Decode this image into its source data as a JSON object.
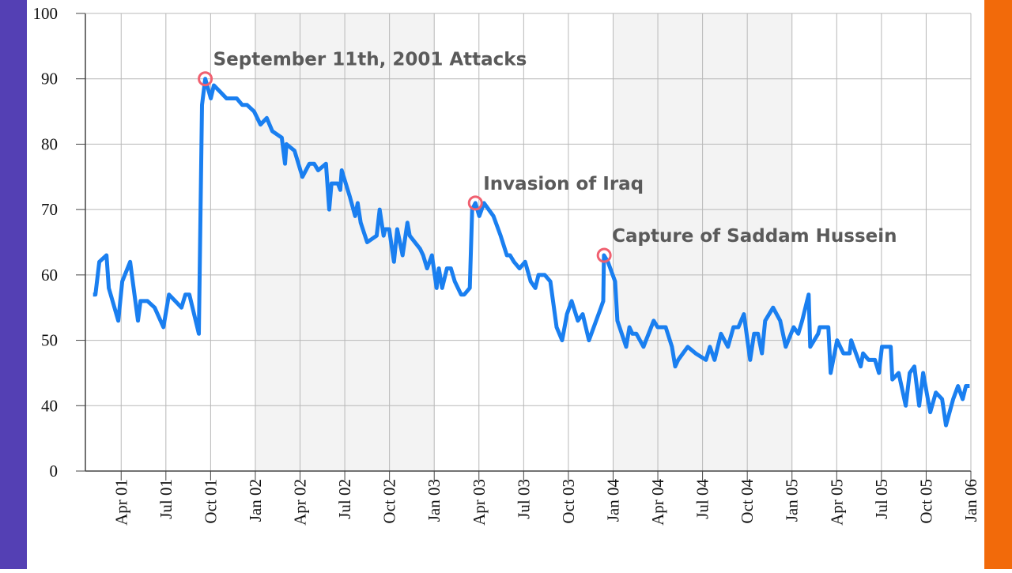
{
  "chart_data": {
    "type": "line",
    "xlim": [
      2001.05,
      2006.0
    ],
    "ylim": [
      30,
      100
    ],
    "yticks": [
      {
        "value": 30,
        "label": "0"
      },
      40,
      50,
      60,
      70,
      80,
      90,
      100
    ],
    "xticks": [
      {
        "value": 2001.25,
        "label": "Apr 01"
      },
      {
        "value": 2001.5,
        "label": "Jul 01"
      },
      {
        "value": 2001.75,
        "label": "Oct 01"
      },
      {
        "value": 2002,
        "label": "Jan 02"
      },
      {
        "value": 2002.25,
        "label": "Apr 02"
      },
      {
        "value": 2002.5,
        "label": "Jul 02"
      },
      {
        "value": 2002.75,
        "label": "Oct 02"
      },
      {
        "value": 2003,
        "label": "Jan 03"
      },
      {
        "value": 2003.25,
        "label": "Apr 03"
      },
      {
        "value": 2003.5,
        "label": "Jul 03"
      },
      {
        "value": 2003.75,
        "label": "Oct 03"
      },
      {
        "value": 2004,
        "label": "Jan 04"
      },
      {
        "value": 2004.25,
        "label": "Apr 04"
      },
      {
        "value": 2004.5,
        "label": "Jul 04"
      },
      {
        "value": 2004.75,
        "label": "Oct 04"
      },
      {
        "value": 2005,
        "label": "Jan 05"
      },
      {
        "value": 2005.25,
        "label": "Apr 05"
      },
      {
        "value": 2005.5,
        "label": "Jul 05"
      },
      {
        "value": 2005.75,
        "label": "Oct 05"
      },
      {
        "value": 2006,
        "label": "Jan 06"
      }
    ],
    "grid": true,
    "shaded_spans": [
      [
        2002,
        2003
      ],
      [
        2004,
        2005
      ]
    ],
    "series": [
      {
        "color": "#1a7ff0",
        "x": [
          2001.093,
          2001.106,
          2001.128,
          2001.168,
          2001.181,
          2001.234,
          2001.256,
          2001.3,
          2001.344,
          2001.358,
          2001.397,
          2001.437,
          2001.486,
          2001.517,
          2001.552,
          2001.587,
          2001.609,
          2001.631,
          2001.684,
          2001.702,
          2001.72,
          2001.751,
          2001.768,
          2001.804,
          2001.839,
          2001.896,
          2001.927,
          2001.954,
          2001.993,
          2002.029,
          2002.064,
          2002.095,
          2002.148,
          2002.166,
          2002.174,
          2002.219,
          2002.263,
          2002.302,
          2002.329,
          2002.351,
          2002.395,
          2002.413,
          2002.426,
          2002.461,
          2002.475,
          2002.483,
          2002.528,
          2002.558,
          2002.572,
          2002.589,
          2002.625,
          2002.678,
          2002.695,
          2002.717,
          2002.726,
          2002.748,
          2002.775,
          2002.793,
          2002.823,
          2002.85,
          2002.863,
          2002.921,
          2002.938,
          2002.96,
          2002.987,
          2003.013,
          2003.026,
          2003.044,
          2003.071,
          2003.093,
          2003.115,
          2003.15,
          2003.168,
          2003.199,
          2003.212,
          2003.23,
          2003.252,
          2003.278,
          2003.331,
          2003.371,
          2003.406,
          2003.424,
          2003.446,
          2003.477,
          2003.508,
          2003.539,
          2003.565,
          2003.583,
          2003.618,
          2003.649,
          2003.684,
          2003.715,
          2003.742,
          2003.768,
          2003.803,
          2003.83,
          2003.865,
          2003.932,
          2003.945,
          2003.949,
          2003.971,
          2004.011,
          2004.024,
          2004.073,
          2004.091,
          2004.108,
          2004.13,
          2004.17,
          2004.227,
          2004.249,
          2004.294,
          2004.329,
          2004.347,
          2004.364,
          2004.417,
          2004.461,
          2004.519,
          2004.541,
          2004.567,
          2004.603,
          2004.642,
          2004.673,
          2004.7,
          2004.731,
          2004.766,
          2004.788,
          2004.81,
          2004.832,
          2004.85,
          2004.894,
          2004.934,
          2004.965,
          2005.009,
          2005.035,
          2005.057,
          2005.093,
          2005.102,
          2005.146,
          2005.155,
          2005.203,
          2005.216,
          2005.252,
          2005.287,
          2005.322,
          2005.331,
          2005.384,
          2005.397,
          2005.428,
          2005.464,
          2005.486,
          2005.503,
          2005.552,
          2005.561,
          2005.596,
          2005.636,
          2005.658,
          2005.684,
          2005.711,
          2005.733,
          2005.773,
          2005.804,
          2005.839,
          2005.861,
          2005.901,
          2005.928,
          2005.954,
          2005.972,
          2005.993
        ],
        "values": [
          57,
          57,
          62,
          63,
          58,
          53,
          59,
          62,
          53,
          56,
          56,
          55,
          52,
          57,
          56,
          55,
          57,
          57,
          51,
          86,
          90,
          87,
          89,
          88,
          87,
          87,
          86,
          86,
          85,
          83,
          84,
          82,
          81,
          77,
          80,
          79,
          75,
          77,
          77,
          76,
          77,
          70,
          74,
          74,
          73,
          76,
          72,
          69,
          71,
          68,
          65,
          66,
          70,
          66,
          67,
          67,
          62,
          67,
          63,
          68,
          66,
          64,
          63,
          61,
          63,
          58,
          61,
          58,
          61,
          61,
          59,
          57,
          57,
          58,
          70,
          71,
          69,
          71,
          69,
          66,
          63,
          63,
          62,
          61,
          62,
          59,
          58,
          60,
          60,
          59,
          52,
          50,
          54,
          56,
          53,
          54,
          50,
          55,
          56,
          63,
          62,
          59,
          53,
          49,
          52,
          51,
          51,
          49,
          53,
          52,
          52,
          49,
          46,
          47,
          49,
          48,
          47,
          49,
          47,
          51,
          49,
          52,
          52,
          54,
          47,
          51,
          51,
          48,
          53,
          55,
          53,
          49,
          52,
          51,
          53,
          57,
          49,
          51,
          52,
          52,
          45,
          50,
          48,
          48,
          50,
          46,
          48,
          47,
          47,
          45,
          49,
          49,
          44,
          45,
          40,
          45,
          46,
          40,
          45,
          39,
          42,
          41,
          37,
          41,
          43,
          41,
          43,
          43
        ]
      }
    ],
    "annotations": [
      {
        "x": 2001.72,
        "y": 90,
        "text": "September 11th, 2001 Attacks"
      },
      {
        "x": 2003.23,
        "y": 71,
        "text": "Invasion of Iraq"
      },
      {
        "x": 2003.95,
        "y": 63,
        "text": "Capture of Saddam Hussein"
      }
    ]
  }
}
